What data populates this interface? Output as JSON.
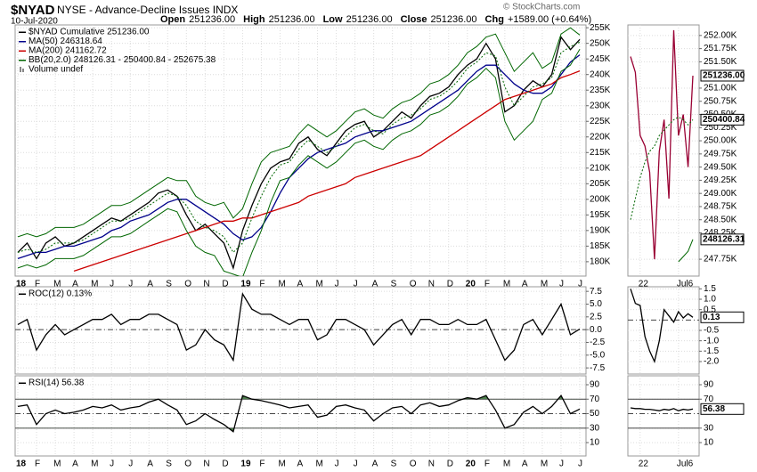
{
  "header": {
    "symbol": "$NYAD",
    "name": "NYSE - Advance-Decline Issues INDX",
    "date": "10-Jul-2020",
    "quote": [
      {
        "label": "Open",
        "value": "251236.00"
      },
      {
        "label": "High",
        "value": "251236.00"
      },
      {
        "label": "Low",
        "value": "251236.00"
      },
      {
        "label": "Close",
        "value": "251236.00"
      },
      {
        "label": "Chg",
        "value": "+1589.00 (+0.64%)"
      }
    ],
    "credit": "© StockCharts.com"
  },
  "chart_data": [
    {
      "type": "line",
      "categories": [
        "18",
        null,
        "F",
        null,
        "M",
        null,
        "A",
        null,
        "M",
        null,
        "J",
        null,
        "J",
        null,
        "A",
        null,
        "S",
        null,
        "O",
        null,
        "N",
        null,
        "D",
        null,
        "19",
        null,
        "F",
        null,
        "M",
        null,
        "A",
        null,
        "M",
        null,
        "J",
        null,
        "J",
        null,
        "A",
        null,
        "S",
        null,
        "O",
        null,
        "N",
        null,
        "D",
        null,
        "20",
        null,
        "F",
        null,
        "M",
        null,
        "A",
        null,
        "M",
        null,
        "J",
        null,
        "J"
      ],
      "series": [
        {
          "name": "$NYAD Cumulative 251236.00",
          "color": "#000000",
          "values": [
            183000,
            186000,
            181000,
            186000,
            188000,
            185000,
            186000,
            188000,
            190000,
            192000,
            194000,
            193000,
            195000,
            197000,
            199000,
            202000,
            203000,
            201000,
            195000,
            190000,
            192000,
            189000,
            186000,
            178000,
            190000,
            198000,
            205000,
            210000,
            212000,
            213000,
            218000,
            220000,
            216000,
            214000,
            218000,
            222000,
            224000,
            225000,
            220000,
            222000,
            225000,
            228000,
            226000,
            230000,
            233000,
            234000,
            236000,
            240000,
            243000,
            245000,
            250000,
            245000,
            228000,
            230000,
            235000,
            238000,
            236000,
            240000,
            252000,
            248000,
            251236
          ]
        },
        {
          "name": "MA(50) 246318.64",
          "color": "#00008b",
          "values": [
            181000,
            182000,
            183000,
            183000,
            184000,
            185000,
            185000,
            186000,
            187000,
            188000,
            190000,
            191000,
            193000,
            194000,
            195000,
            197000,
            199000,
            200000,
            200000,
            198000,
            196000,
            194000,
            192000,
            189000,
            187000,
            188000,
            191000,
            196000,
            202000,
            207000,
            210000,
            213000,
            215000,
            216000,
            217000,
            218000,
            220000,
            221000,
            222000,
            222000,
            223000,
            224000,
            225000,
            227000,
            229000,
            231000,
            233000,
            235000,
            238000,
            241000,
            243000,
            243000,
            240000,
            237000,
            235000,
            234000,
            234000,
            236000,
            240000,
            244000,
            246318.64
          ]
        },
        {
          "name": "MA(200) 241162.72",
          "color": "#cc0000",
          "values": [
            null,
            null,
            null,
            null,
            null,
            null,
            177000,
            178000,
            179000,
            180000,
            181000,
            182000,
            183000,
            184000,
            185000,
            186000,
            187000,
            188000,
            189000,
            190000,
            191000,
            192000,
            193000,
            193000,
            194000,
            194000,
            195000,
            196000,
            197000,
            198000,
            199000,
            201000,
            202000,
            203000,
            204000,
            205000,
            207000,
            208000,
            209000,
            210000,
            211000,
            212000,
            213000,
            214000,
            216000,
            218000,
            220000,
            222000,
            224000,
            226000,
            228000,
            230000,
            232000,
            233000,
            234000,
            235000,
            236000,
            237000,
            239000,
            240000,
            241162.72
          ]
        },
        {
          "name": "BB(20,2.0) 248126.31 - 250400.84 - 252675.38",
          "color": "#006600",
          "dashed": true,
          "values": [
            183000,
            184000,
            183000,
            184000,
            186000,
            186000,
            186000,
            187000,
            189000,
            191000,
            193000,
            193000,
            194000,
            196000,
            198000,
            200000,
            202000,
            201000,
            198000,
            193000,
            191000,
            190000,
            188000,
            183000,
            186000,
            194000,
            201000,
            207000,
            211000,
            212000,
            216000,
            219000,
            217000,
            215000,
            217000,
            220000,
            223000,
            224000,
            222000,
            221000,
            224000,
            226000,
            227000,
            229000,
            232000,
            233000,
            235000,
            238000,
            242000,
            244000,
            247000,
            246000,
            236000,
            230000,
            233000,
            236000,
            237000,
            239000,
            247000,
            249000,
            250400.84
          ],
          "upper": [
            188000,
            189000,
            188000,
            189000,
            191000,
            191000,
            191000,
            192000,
            194000,
            196000,
            198000,
            198000,
            199000,
            201000,
            203000,
            205000,
            207000,
            206000,
            206000,
            201000,
            199000,
            198000,
            199000,
            194000,
            197000,
            205000,
            212000,
            215000,
            216000,
            217000,
            221000,
            224000,
            222000,
            220000,
            222000,
            225000,
            228000,
            229000,
            227000,
            226000,
            229000,
            231000,
            232000,
            234000,
            237000,
            238000,
            240000,
            243000,
            247000,
            249000,
            252000,
            253000,
            247000,
            241000,
            244000,
            247000,
            242000,
            244000,
            253000,
            255000,
            252675.38
          ],
          "lower": [
            178000,
            179000,
            178000,
            179000,
            181000,
            181000,
            181000,
            182000,
            184000,
            186000,
            188000,
            188000,
            189000,
            191000,
            193000,
            195000,
            197000,
            196000,
            190000,
            185000,
            183000,
            182000,
            177000,
            176000,
            175000,
            183000,
            190000,
            199000,
            206000,
            207000,
            211000,
            214000,
            212000,
            210000,
            212000,
            215000,
            218000,
            219000,
            217000,
            216000,
            219000,
            221000,
            222000,
            224000,
            227000,
            228000,
            230000,
            233000,
            237000,
            239000,
            242000,
            239000,
            225000,
            219000,
            222000,
            225000,
            232000,
            234000,
            241000,
            243000,
            248126.31
          ]
        }
      ],
      "annotations": [
        "Volume undef"
      ],
      "ylim": [
        175400,
        255900
      ],
      "yticks": [
        {
          "value": 180000,
          "label": "180K"
        },
        {
          "value": 185000,
          "label": "185K"
        },
        {
          "value": 190000,
          "label": "190K"
        },
        {
          "value": 195000,
          "label": "195K"
        },
        {
          "value": 200000,
          "label": "200K"
        },
        {
          "value": 205000,
          "label": "205K"
        },
        {
          "value": 210000,
          "label": "210K"
        },
        {
          "value": 215000,
          "label": "215K"
        },
        {
          "value": 220000,
          "label": "220K"
        },
        {
          "value": 225000,
          "label": "225K"
        },
        {
          "value": 230000,
          "label": "230K"
        },
        {
          "value": 235000,
          "label": "235K"
        },
        {
          "value": 240000,
          "label": "240K"
        },
        {
          "value": 245000,
          "label": "245K"
        },
        {
          "value": 250000,
          "label": "250K"
        },
        {
          "value": 255000,
          "label": "255K"
        }
      ],
      "grid": true
    },
    {
      "type": "line",
      "series": [
        {
          "name": "ROC(12) 0.13%",
          "color": "#000000",
          "values": [
            1,
            2,
            -4,
            -1,
            1,
            -1,
            0,
            1,
            2,
            2,
            3,
            1,
            2,
            2,
            3,
            3,
            2,
            1,
            -4,
            -3,
            0,
            -2,
            -3,
            -6,
            7,
            4,
            3,
            3,
            2,
            1,
            2,
            2,
            -2,
            -1,
            2,
            2,
            1,
            0,
            -3,
            -1,
            1,
            2,
            -1,
            2,
            2,
            1,
            1,
            2,
            1,
            1,
            2,
            -2,
            -6,
            -4,
            1,
            2,
            -1,
            2,
            5,
            -1,
            0.13
          ]
        }
      ],
      "ylim": [
        -8.7,
        8.4
      ],
      "yticks": [
        7.5,
        {
          "value": 5,
          "label": "5.0"
        },
        2.5,
        {
          "value": 0,
          "label": "0.0"
        },
        -2.5,
        {
          "value": -5,
          "label": "-5.0"
        },
        -7.5
      ],
      "dashed_lines": [
        0
      ],
      "grid": true
    },
    {
      "type": "line",
      "series": [
        {
          "name": "RSI(14) 56.38",
          "color": "#000000",
          "values": [
            60,
            62,
            35,
            50,
            55,
            50,
            52,
            55,
            60,
            58,
            62,
            55,
            58,
            60,
            66,
            70,
            62,
            55,
            35,
            40,
            50,
            42,
            35,
            25,
            75,
            70,
            68,
            65,
            62,
            58,
            60,
            62,
            45,
            48,
            60,
            62,
            58,
            55,
            40,
            50,
            58,
            60,
            50,
            62,
            65,
            60,
            62,
            68,
            72,
            70,
            75,
            55,
            30,
            35,
            52,
            60,
            50,
            60,
            75,
            50,
            56.38
          ]
        }
      ],
      "ylim": [
        -8.5,
        102.3
      ],
      "yticks": [
        10,
        30,
        50,
        70,
        90
      ],
      "lines": [
        30,
        70
      ],
      "dashed_lines": [
        50
      ],
      "shade_above": 70,
      "shade_below": 30,
      "shade_color": "#4d7f4d",
      "grid": true
    },
    {
      "type": "line",
      "categories": [
        null,
        null,
        "22",
        null,
        null,
        null,
        null,
        null,
        null,
        null,
        "Jul6",
        null,
        null,
        null
      ],
      "series": [
        {
          "color": "#990033",
          "values": [
            251600,
            251300,
            250100,
            249900,
            249400,
            247750,
            249800,
            250400,
            248900,
            252100,
            250100,
            250500,
            249500,
            251236
          ]
        },
        {
          "color": "#006600",
          "dashed": true,
          "values": [
            248500,
            248900,
            249300,
            249600,
            249800,
            249900,
            250100,
            250200,
            250300,
            250400,
            250450,
            250400,
            250300,
            250400.84
          ],
          "lower": [
            null,
            null,
            null,
            null,
            null,
            null,
            null,
            null,
            null,
            null,
            247700,
            247800,
            247900,
            248126.31
          ]
        }
      ],
      "ylim": [
        247430,
        252200
      ],
      "yticks": [
        {
          "value": 252000,
          "label": "252.00K"
        },
        {
          "value": 251750,
          "label": "251.75K"
        },
        {
          "value": 251500,
          "label": "251.50K"
        },
        {
          "value": 251000,
          "label": "251.00K"
        },
        {
          "value": 250750,
          "label": "250.75K"
        },
        {
          "value": 250500,
          "label": "250.50K"
        },
        {
          "value": 250250,
          "label": "250.25K"
        },
        {
          "value": 250000,
          "label": "250.00K"
        },
        {
          "value": 249750,
          "label": "249.75K"
        },
        {
          "value": 249500,
          "label": "249.50K"
        },
        {
          "value": 249250,
          "label": "249.25K"
        },
        {
          "value": 249000,
          "label": "249.00K"
        },
        {
          "value": 248750,
          "label": "248.75K"
        },
        {
          "value": 248500,
          "label": "248.50K"
        },
        {
          "value": 248250,
          "label": "248.25K"
        },
        {
          "value": 247750,
          "label": "247.75K"
        }
      ],
      "tags": [
        {
          "value": 251236,
          "label": "251236.00"
        },
        {
          "value": 250400.84,
          "label": "250400.84"
        },
        {
          "value": 248126.31,
          "label": "248126.31"
        }
      ],
      "grid": true
    },
    {
      "type": "line",
      "series": [
        {
          "color": "#000000",
          "values": [
            1.5,
            0.8,
            0.7,
            -0.8,
            -1.5,
            -2.0,
            -1.0,
            0.5,
            0.2,
            -0.1,
            0.4,
            0.1,
            0.3,
            0.13
          ]
        }
      ],
      "ylim": [
        -2.6,
        1.6
      ],
      "yticks": [
        1.5,
        {
          "value": 1,
          "label": "1.0"
        },
        0.5,
        -0.5,
        {
          "value": -1,
          "label": "-1.0"
        },
        -1.5,
        {
          "value": -2,
          "label": "-2.0"
        }
      ],
      "dashed_lines": [
        0
      ],
      "tags": [
        0.13
      ],
      "grid": true
    },
    {
      "type": "line",
      "series": [
        {
          "color": "#000000",
          "values": [
            58,
            57,
            57,
            56,
            56,
            55,
            54,
            56,
            55,
            57,
            54,
            56,
            55,
            56.38
          ]
        }
      ],
      "ylim": [
        -8.5,
        102.3
      ],
      "yticks": [
        10,
        30,
        70,
        90
      ],
      "lines": [
        30,
        70
      ],
      "dashed_lines": [
        50
      ],
      "tags": [
        56.38
      ],
      "grid": true
    }
  ]
}
